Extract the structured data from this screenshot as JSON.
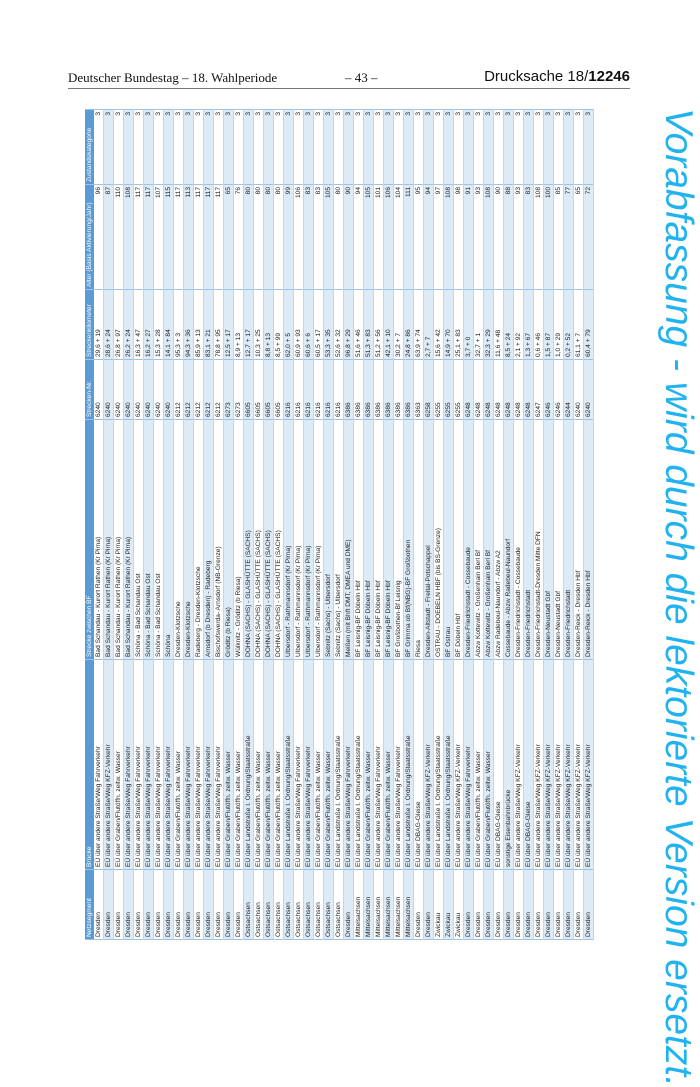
{
  "header": {
    "left": "Deutscher Bundestag – 18. Wahlperiode",
    "center": "– 43 –",
    "right_prefix": "Drucksache 18/",
    "right_number": "12246"
  },
  "watermark": "Vorabfassung - wird durch die lektorierte Version ersetzt.",
  "colors": {
    "header_bg": "#5b9bd5",
    "row_alt": "#ddebf7",
    "watermark": "#21b3ef"
  },
  "table": {
    "columns": [
      "Netzsegment",
      "Brücke",
      "Strecke zwischen BF",
      "Strecken-Nr.",
      "Streckenkilometer",
      "Alter (Basis Aktivierung/Jahr)",
      "Zustandskategorie"
    ],
    "rows": [
      [
        "Dresden",
        "EÜ über andere Straße/Weg Fahrverkehr",
        "Bad Schandau - Kurort Rathen (Kr Pirna)",
        "6240",
        "29,6 + 19",
        "96",
        "3"
      ],
      [
        "Dresden",
        "EÜ über andere Straße/Weg KFZ-Verkehr",
        "Bad Schandau - Kurort Rathen (Kr Pirna)",
        "6240",
        "28,6 + 24",
        "87",
        "3"
      ],
      [
        "Dresden",
        "EÜ über Graben/Flutöffn. zeitw. Wasser",
        "Bad Schandau - Kurort Rathen (Kr Pirna)",
        "6240",
        "26,8 + 97",
        "110",
        "3"
      ],
      [
        "Dresden",
        "EÜ über andere Straße/Weg Fahrverkehr",
        "Bad Schandau - Kurort Rathen (Kr Pirna)",
        "6240",
        "26,2 + 24",
        "108",
        "3"
      ],
      [
        "Dresden",
        "EÜ über andere Straße/Weg Fahrverkehr",
        "Schöna - Bad Schandau Ost",
        "6240",
        "16,3 + 47",
        "117",
        "3"
      ],
      [
        "Dresden",
        "EÜ über andere Straße/Weg Fahrverkehr",
        "Schöna - Bad Schandau Ost",
        "6240",
        "16,2 + 27",
        "117",
        "3"
      ],
      [
        "Dresden",
        "EÜ über andere Straße/Weg Fahrverkehr",
        "Schöna - Bad Schandau Ost",
        "6240",
        "15,3 + 28",
        "107",
        "3"
      ],
      [
        "Dresden",
        "EÜ über andere Straße/Weg Fahrverkehr",
        "Schöna",
        "6240",
        "14,1 + 84",
        "115",
        "3"
      ],
      [
        "Dresden",
        "EÜ über Graben/Flutöffn. zeitw. Wasser",
        "Dresden-Klotzsche",
        "6212",
        "95,3 + 3",
        "117",
        "3"
      ],
      [
        "Dresden",
        "EÜ über andere Straße/Weg Fahrverkehr",
        "Dresden-Klotzsche",
        "6212",
        "94,3 + 36",
        "113",
        "3"
      ],
      [
        "Dresden",
        "EÜ über andere Straße/Weg Fahrverkehr",
        "Radeberg - Dresden-Klotzsche",
        "6212",
        "85,9 + 13",
        "117",
        "3"
      ],
      [
        "Dresden",
        "EÜ über andere Straße/Weg Fahrverkehr",
        "Arnsdorf (b Dresden) - Radeberg",
        "6212",
        "83,1 + 21",
        "117",
        "3"
      ],
      [
        "Dresden",
        "EÜ über andere Straße/Weg Fahrverkehr",
        "Bischofswerda- Arnsdorf (NB-Grenze)",
        "6212",
        "78,8 + 95",
        "117",
        "3"
      ],
      [
        "Dresden",
        "EÜ über Graben/Flutöffn. zeitw. Wasser",
        "Gröditz (b Riesa)",
        "6273",
        "12,5 + 17",
        "65",
        "3"
      ],
      [
        "Dresden",
        "EÜ über Graben/Flutöffn. zeitw. Wasser",
        "Wülknitz - Gröditz (b Riesa)",
        "6273",
        "8,9 + 13",
        "76",
        "3"
      ],
      [
        "Ostsachsen",
        "EÜ über Landstraße I. Ordnung/Staatsstraße",
        "DOHNA (SACHS) - GLASHÜTTE (SACHS)",
        "6605",
        "12,7 + 17",
        "80",
        "3"
      ],
      [
        "Ostsachsen",
        "EÜ über Graben/Flutöffn. zeitw. Wasser",
        "DOHNA (SACHS) - GLASHÜTTE (SACHS)",
        "6605",
        "10,3 + 25",
        "80",
        "3"
      ],
      [
        "Ostsachsen",
        "EÜ über Graben/Flutöffn. zeitw. Wasser",
        "DOHNA (SACHS) - GLASHÜTTE (SACHS)",
        "6605",
        "8,8 + 13",
        "80",
        "3"
      ],
      [
        "Ostsachsen",
        "EÜ über Graben/Flutöffn. zeitw. Wasser",
        "DOHNA (SACHS) - GLASHÜTTE (SACHS)",
        "6605",
        "8,5 + 99",
        "80",
        "3"
      ],
      [
        "Ostsachsen",
        "EÜ über Landstraße I. Ordnung/Staatsstraße",
        "Ulbersdorf - Rathmannsdorf (Kr Pirna)",
        "6216",
        "62,0 + 5",
        "99",
        "3"
      ],
      [
        "Ostsachsen",
        "EÜ über andere Straße/Weg Fahrverkehr",
        "Ulbersdorf - Rathmannsdorf (Kr Pirna)",
        "6216",
        "60,9 + 93",
        "106",
        "3"
      ],
      [
        "Ostsachsen",
        "EÜ über andere Straße/Weg Fahrverkehr",
        "Ulbersdorf - Rathmannsdorf (Kr Pirna)",
        "6216",
        "60,6 + 6",
        "83",
        "3"
      ],
      [
        "Ostsachsen",
        "EÜ über Graben/Flutöffn. zeitw. Wasser",
        "Ulbersdorf - Rathmannsdorf (Kr Pirna)",
        "6216",
        "60,5 + 17",
        "83",
        "3"
      ],
      [
        "Ostsachsen",
        "EÜ über Graben/Flutöffn. zeitw. Wasser",
        "Sebnitz (Sachs) - Ulbersdorf",
        "6216",
        "53,3 + 35",
        "105",
        "3"
      ],
      [
        "Ostsachsen",
        "EÜ über Landstraße I. Ordnung/Staatsstraße",
        "Sebnitz (Sachs) - Ulbersdorf",
        "6216",
        "52,6 + 32",
        "80",
        "3"
      ],
      [
        "Dresden",
        "EÜ über andere Straße/Weg Fahrverkehr",
        "Meißen (mit Bhft DMT, DMEA und DME)",
        "6386",
        "96,8 + 29",
        "90",
        "3"
      ],
      [
        "Mittelsachsen",
        "EÜ über Landstraße I. Ordnung/Staatsstraße",
        "BF Leisnig-BF Döbeln Hbf",
        "6386",
        "51,6 + 46",
        "94",
        "3"
      ],
      [
        "Mittelsachsen",
        "EÜ über Graben/Flutöffn. zeitw. Wasser",
        "BF Leisnig-BF Döbeln Hbf",
        "6386",
        "51,3 + 83",
        "105",
        "3"
      ],
      [
        "Mittelsachsen",
        "EÜ über andere Straße/Weg Fahrverkehr",
        "BF Leisnig-BF Döbeln Hbf",
        "6386",
        "51,2 + 56",
        "101",
        "3"
      ],
      [
        "Mittelsachsen",
        "EÜ über Graben/Flutöffn. zeitw. Wasser",
        "BF Leisnig-BF Döbeln Hbf",
        "6386",
        "42,1 + 10",
        "106",
        "3"
      ],
      [
        "Mittelsachsen",
        "EÜ über andere Straße/Weg Fahrverkehr",
        "BF Großbothen-Bf Leisnig",
        "6386",
        "30,2 + 7",
        "104",
        "3"
      ],
      [
        "Mittelsachsen",
        "EÜ über Landstraße I. Ordnung/Staatsstraße",
        "BF Grimma ob Bf(NBG)-BF Großbothen",
        "6386",
        "24,8 + 86",
        "111",
        "3"
      ],
      [
        "Dresden",
        "EÜ über DBAG-Gleise",
        "Riesa",
        "6363",
        "63,9 + 74",
        "95",
        "3"
      ],
      [
        "Dresden",
        "EÜ über andere Straße/Weg KFZ-Verkehr",
        "Dresden-Altstadt - Freital-Potschappel",
        "6258",
        "2,7 + 7",
        "94",
        "3"
      ],
      [
        "Zwickau",
        "EÜ über Landstraße I. Ordnung/Staatsstraße",
        "OSTRAU - DOEBELN HBF (bis BS-Grenze)",
        "6255",
        "15,6 + 42",
        "97",
        "3"
      ],
      [
        "Zwickau",
        "EÜ über Landstraße I. Ordnung/Staatsstraße",
        "BF Ostrau",
        "6255",
        "14,9 + 70",
        "108",
        "3"
      ],
      [
        "Zwickau",
        "EÜ über andere Straße/Weg KFZ-Verkehr",
        "BF Döbeln Hbf",
        "6255",
        "25,1 + 83",
        "98",
        "3"
      ],
      [
        "Dresden",
        "EÜ über andere Straße/Weg Fahrverkehr",
        "Dresden-Friedrichstadt - Cossebaude",
        "6248",
        "3,7 + 0",
        "91",
        "3"
      ],
      [
        "Dresden",
        "EÜ über Graben/Flutöffn. zeitw. Wasser",
        "Abzw Kottewitz - Großenhain Berl Bf",
        "6248",
        "32,7 + 1",
        "93",
        "3"
      ],
      [
        "Dresden",
        "EÜ über Graben/Flutöffn. zeitw. Wasser",
        "Abzw Kottewitz - Großenhain Berl Bf",
        "6248",
        "32,3 + 29",
        "108",
        "3"
      ],
      [
        "Dresden",
        "EÜ über DBAG-Gleise",
        "Abzw Radebeul-Naundorf - Abzw A2",
        "6248",
        "11,6 + 48",
        "90",
        "3"
      ],
      [
        "Dresden",
        "sonstige Eisenbahnbrücke",
        "Cossebaude - Abzw Radebeul-Naundorf",
        "6248",
        "8,5 + 24",
        "88",
        "3"
      ],
      [
        "Dresden",
        "EÜ über andere Straße/Weg KFZ-Verkehr",
        "Dresden-Friedrichstadt - Cossebaude",
        "6248",
        "2,1 + 92",
        "93",
        "3"
      ],
      [
        "Dresden",
        "EÜ über DBAG-Gleise",
        "Dresden-Friedrichstadt",
        "6248",
        "1,3 + 67",
        "83",
        "3"
      ],
      [
        "Dresden",
        "EÜ über andere Straße/Weg KFZ-Verkehr",
        "Dresden-Friedrichstadt-Dresden Mitte DFN",
        "6247",
        "0,6 + 46",
        "108",
        "3"
      ],
      [
        "Dresden",
        "EÜ über andere Straße/Weg KFZ-Verkehr",
        "Dresden-Neustadt Gbf",
        "6246",
        "1,5 + 87",
        "100",
        "3"
      ],
      [
        "Dresden",
        "EÜ über andere Straße/Weg KFZ-Verkehr",
        "Dresden-Neustadt Gbf",
        "6246",
        "1,0 + 29",
        "85",
        "3"
      ],
      [
        "Dresden",
        "EÜ über andere Straße/Weg KFZ-Verkehr",
        "Dresden-Friedrichstadt",
        "6244",
        "0,2 + 52",
        "77",
        "3"
      ],
      [
        "Dresden",
        "EÜ über andere Straße/Weg KFZ-Verkehr",
        "Dresden-Reick - Dresden Hbf",
        "6240",
        "61,1 + 7",
        "65",
        "3"
      ],
      [
        "Dresden",
        "EÜ über andere Straße/Weg KFZ-Verkehr",
        "Dresden-Reick - Dresden Hbf",
        "6240",
        "60,4 + 79",
        "72",
        "3"
      ]
    ]
  }
}
